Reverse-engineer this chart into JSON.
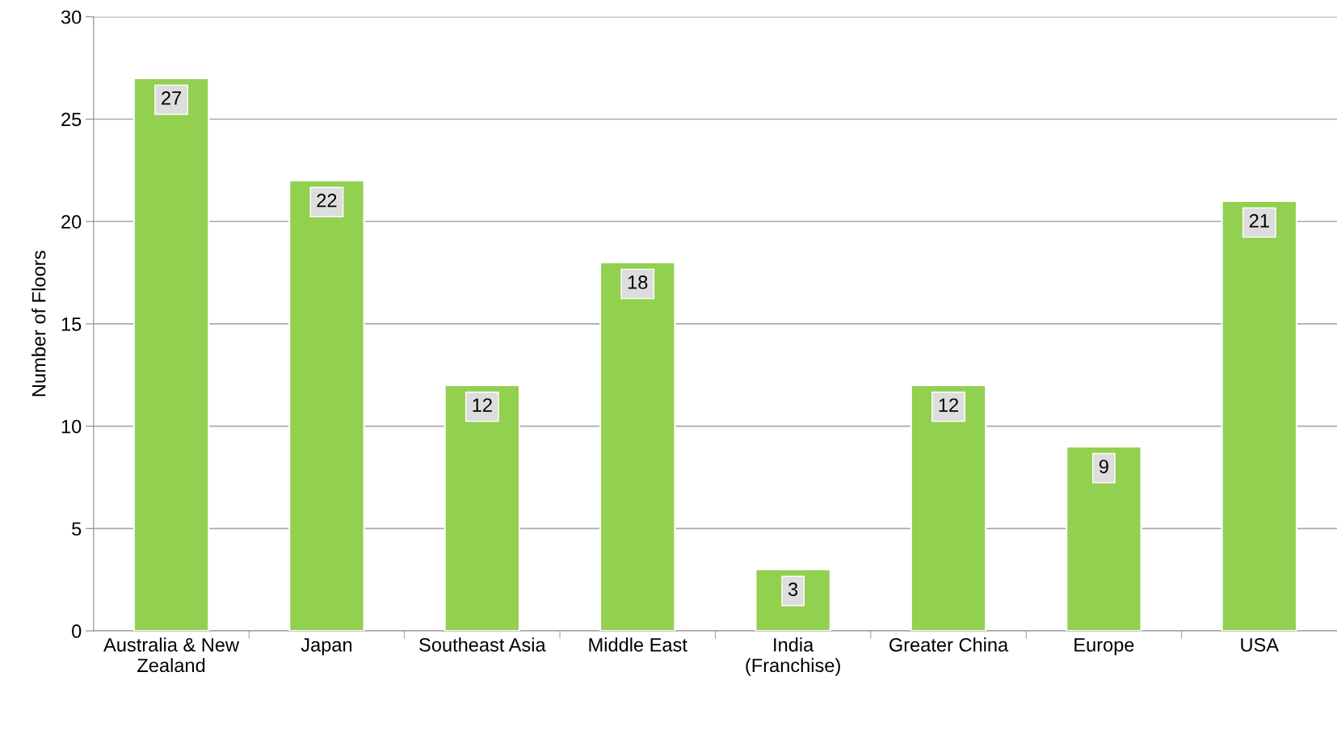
{
  "chart_data": {
    "type": "bar",
    "ylabel": "Number of Floors",
    "categories": [
      "Australia & New\nZealand",
      "Japan",
      "Southeast Asia",
      "Middle East",
      "India\n(Franchise)",
      "Greater China",
      "Europe",
      "USA"
    ],
    "values": [
      27,
      22,
      12,
      18,
      3,
      12,
      9,
      21
    ],
    "color": "#92d050",
    "ylim": [
      0,
      30
    ],
    "yticks": [
      0,
      5,
      10,
      15,
      20,
      25,
      30
    ],
    "grid": "y",
    "data_labels": true
  }
}
